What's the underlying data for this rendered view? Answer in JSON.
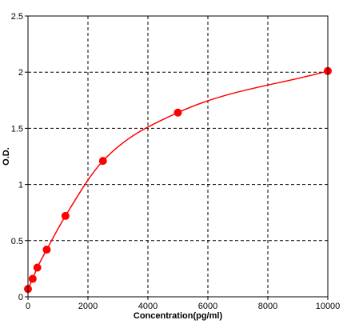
{
  "chart_data": {
    "type": "scatter",
    "title": "",
    "xlabel": "Concentration(pg/ml)",
    "ylabel": "O.D.",
    "xlim": [
      0,
      10000
    ],
    "ylim": [
      0,
      2.5
    ],
    "x_ticks": [
      0,
      2000,
      4000,
      6000,
      8000,
      10000
    ],
    "x_tick_labels": [
      "0",
      "2000",
      "4000",
      "6000",
      "8000",
      "10000"
    ],
    "y_ticks": [
      0,
      0.5,
      1,
      1.5,
      2,
      2.5
    ],
    "y_tick_labels": [
      "0",
      "0.5",
      "1",
      "1.5",
      "2",
      "2.5"
    ],
    "grid": true,
    "series": [
      {
        "x": [
          0,
          156,
          312,
          625,
          1250,
          2500,
          5000,
          10000
        ],
        "y": [
          0.07,
          0.16,
          0.26,
          0.42,
          0.72,
          1.21,
          1.64,
          2.01
        ],
        "color": "#ff0000",
        "marker": "circle",
        "fit_line": true
      }
    ]
  }
}
